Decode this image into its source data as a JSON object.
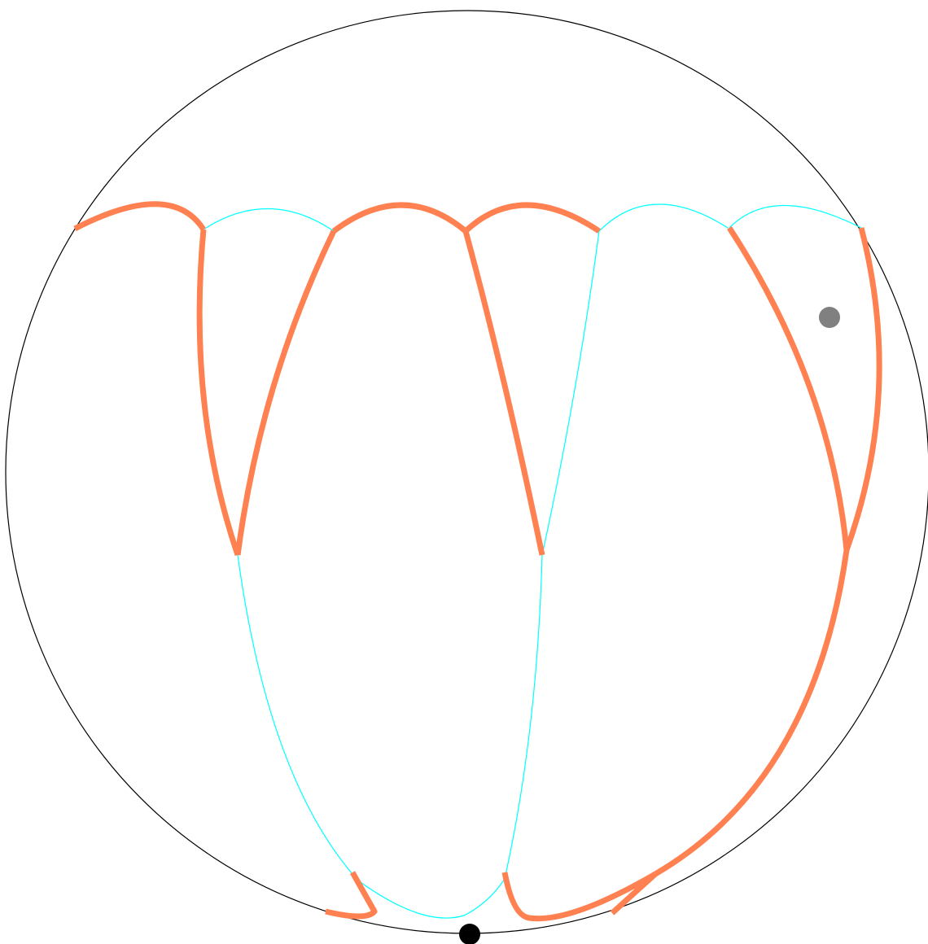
{
  "colors": {
    "background": "#ffffff",
    "boundary": "#000000",
    "thin_curve": "#00ffff",
    "thick_curve": "#ff8050",
    "marker_gray": "#808080",
    "marker_black": "#000000"
  },
  "diagram": {
    "kind": "disk with curves",
    "thin_curve_count": 10,
    "thick_curve_count": 13,
    "markers": [
      {
        "name": "gray-marker",
        "color": "#808080"
      },
      {
        "name": "black-marker",
        "color": "#000000"
      }
    ]
  }
}
